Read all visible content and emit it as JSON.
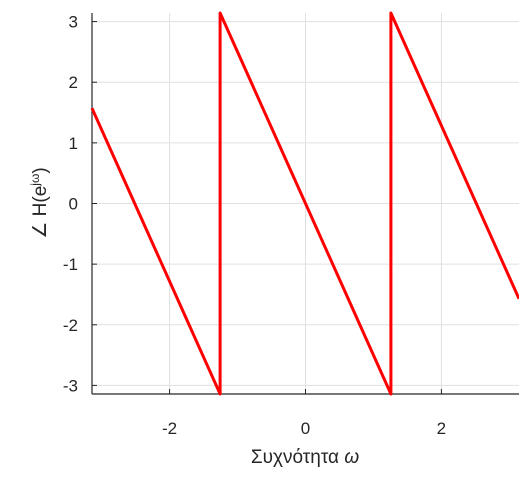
{
  "chart_data": {
    "type": "line",
    "title": "",
    "xlabel": "Συχνότητα ω",
    "ylabel": "∠ H(e^jω)",
    "xlim": [
      -3.14159,
      3.14159
    ],
    "ylim": [
      -3.14159,
      3.14159
    ],
    "xticks": [
      -2,
      0,
      2
    ],
    "xtick_labels": [
      "-2",
      "0",
      "2"
    ],
    "yticks": [
      -3,
      -2,
      -1,
      0,
      1,
      2,
      3
    ],
    "ytick_labels": [
      "-3",
      "-2",
      "-1",
      "0",
      "1",
      "2",
      "3"
    ],
    "grid": true,
    "series": [
      {
        "name": "",
        "color": "#ff0000",
        "x": [
          -3.14159,
          -1.2566,
          -1.2566,
          1.2566,
          1.2566,
          3.14159
        ],
        "y": [
          1.5708,
          -3.14159,
          3.14159,
          -3.14159,
          3.14159,
          -1.5708
        ]
      }
    ]
  }
}
